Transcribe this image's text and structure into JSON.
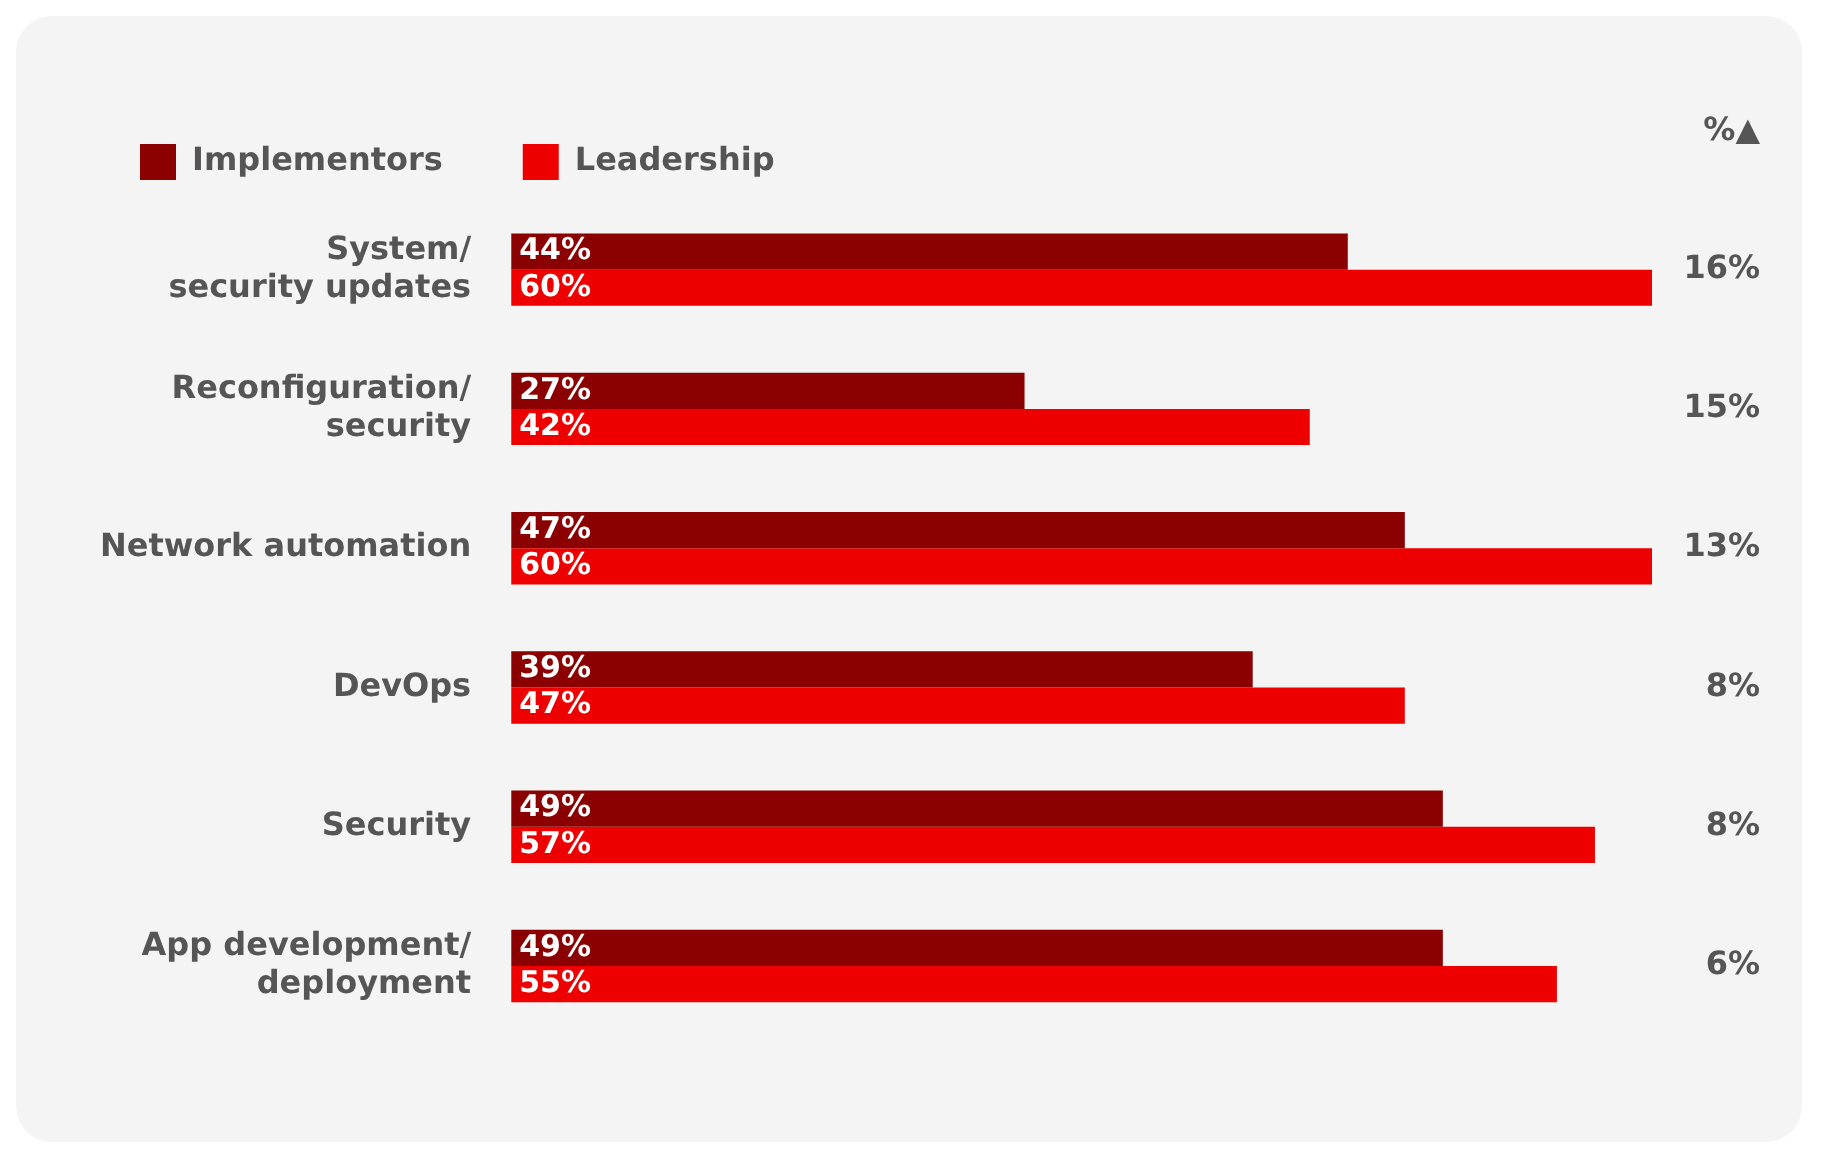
{
  "chart_data": {
    "type": "bar",
    "orientation": "horizontal",
    "categories": [
      "System/\nsecurity updates",
      "Reconfiguration/\nsecurity",
      "Network automation",
      "DevOps",
      "Security",
      "App development/\ndeployment"
    ],
    "series": [
      {
        "name": "Implementors",
        "color": "#8b0000",
        "values": [
          44,
          27,
          47,
          39,
          49,
          49
        ],
        "value_labels": [
          "44%",
          "27%",
          "47%",
          "39%",
          "49%",
          "49%"
        ]
      },
      {
        "name": "Leadership",
        "color": "#ee0000",
        "values": [
          60,
          42,
          60,
          47,
          57,
          55
        ],
        "value_labels": [
          "60%",
          "42%",
          "60%",
          "47%",
          "57%",
          "55%"
        ]
      }
    ],
    "legend": "top",
    "grid": false,
    "annotations": [
      "%▲",
      "16%",
      "15%",
      "13%",
      "8%",
      "8%",
      "6%"
    ]
  }
}
